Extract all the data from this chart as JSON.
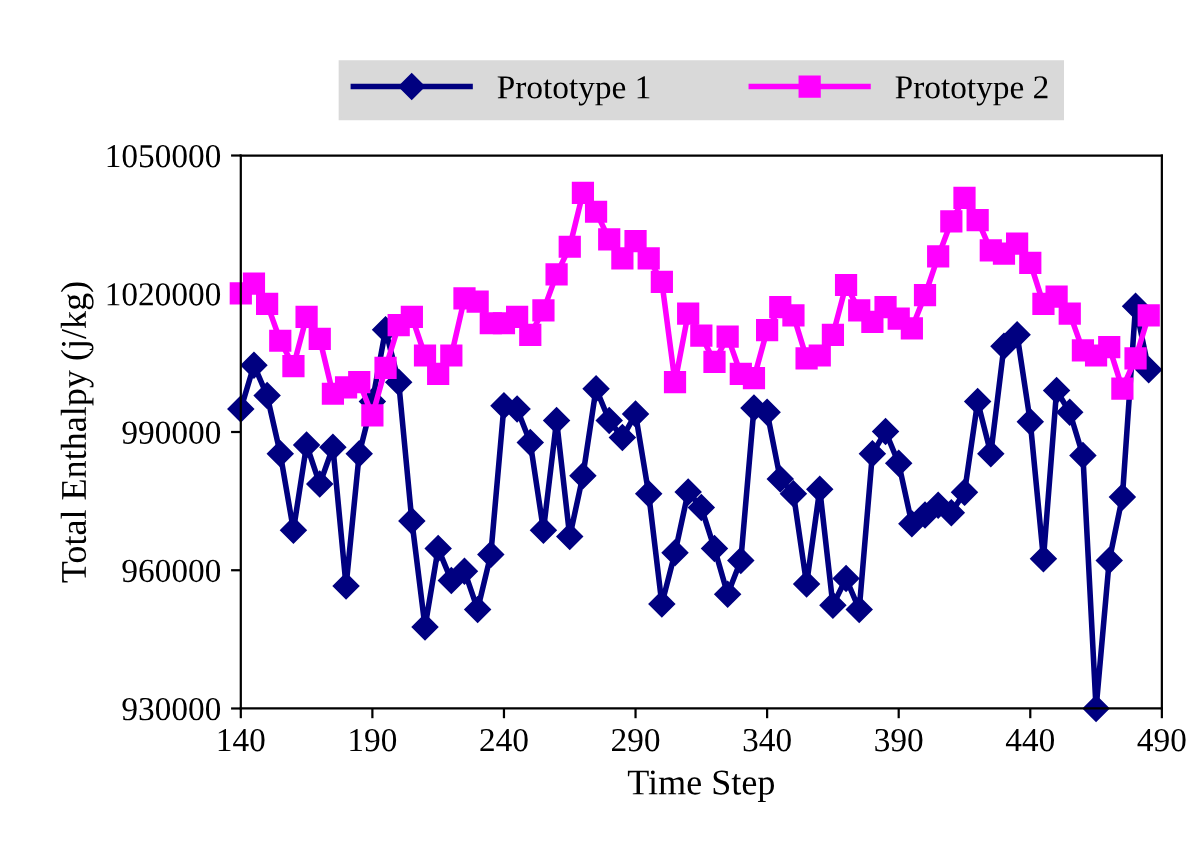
{
  "chart_data": {
    "type": "line",
    "xlabel": "Time Step",
    "ylabel": "Total Enthalpy (j/kg)",
    "x": [
      140,
      145,
      150,
      155,
      160,
      165,
      170,
      175,
      180,
      185,
      190,
      195,
      200,
      205,
      210,
      215,
      220,
      225,
      230,
      235,
      240,
      245,
      250,
      255,
      260,
      265,
      270,
      275,
      280,
      285,
      290,
      295,
      300,
      305,
      310,
      315,
      320,
      325,
      330,
      335,
      340,
      345,
      350,
      355,
      360,
      365,
      370,
      375,
      380,
      385,
      390,
      395,
      400,
      405,
      410,
      415,
      420,
      425,
      430,
      435,
      440,
      445,
      450,
      455,
      460,
      465,
      470,
      475,
      480,
      485
    ],
    "series": [
      {
        "name": "Prototype 1",
        "color": "#000080",
        "marker": "diamond",
        "values": [
          995000,
          1004500,
          997900,
          985300,
          968700,
          987200,
          978700,
          986700,
          956600,
          985300,
          996600,
          1012200,
          1000800,
          970700,
          947700,
          964700,
          957800,
          959800,
          951500,
          963400,
          995700,
          995000,
          987700,
          968700,
          992500,
          967300,
          980500,
          999400,
          992500,
          988800,
          993900,
          976600,
          952700,
          963800,
          977000,
          973600,
          964700,
          954800,
          962100,
          995200,
          994300,
          979800,
          976600,
          957000,
          977600,
          952400,
          958200,
          951500,
          985300,
          990100,
          983200,
          970100,
          972000,
          974100,
          972500,
          976900,
          996600,
          985300,
          1008600,
          1011100,
          992200,
          962500,
          999000,
          994300,
          984900,
          930000,
          962100,
          975900,
          1017300,
          1003500
        ]
      },
      {
        "name": "Prototype 2",
        "color": "#ff00ff",
        "marker": "square",
        "values": [
          1020100,
          1022200,
          1017800,
          1009800,
          1004300,
          1015000,
          1010200,
          998300,
          999700,
          1000800,
          993600,
          1003900,
          1013200,
          1015000,
          1006600,
          1002600,
          1006600,
          1019000,
          1018300,
          1013600,
          1013600,
          1015000,
          1011100,
          1016400,
          1024200,
          1030200,
          1041900,
          1037800,
          1031800,
          1027700,
          1031400,
          1027700,
          1022600,
          1000800,
          1015700,
          1010900,
          1005200,
          1010700,
          1002600,
          1001700,
          1012100,
          1017100,
          1015300,
          1006000,
          1006600,
          1011100,
          1021900,
          1016400,
          1013900,
          1017100,
          1014600,
          1012500,
          1019700,
          1028100,
          1035700,
          1040800,
          1036000,
          1029400,
          1028700,
          1030900,
          1026700,
          1017800,
          1019400,
          1015700,
          1007700,
          1006600,
          1008400,
          999400,
          1006000,
          1015300
        ]
      }
    ],
    "xlim": [
      140,
      490
    ],
    "xticks": [
      140,
      190,
      240,
      290,
      340,
      390,
      440,
      490
    ],
    "ylim": [
      930000,
      1050000
    ],
    "yticks": [
      930000,
      960000,
      990000,
      1020000,
      1050000
    ],
    "grid": false,
    "legend": "top",
    "line_style": "solid"
  }
}
